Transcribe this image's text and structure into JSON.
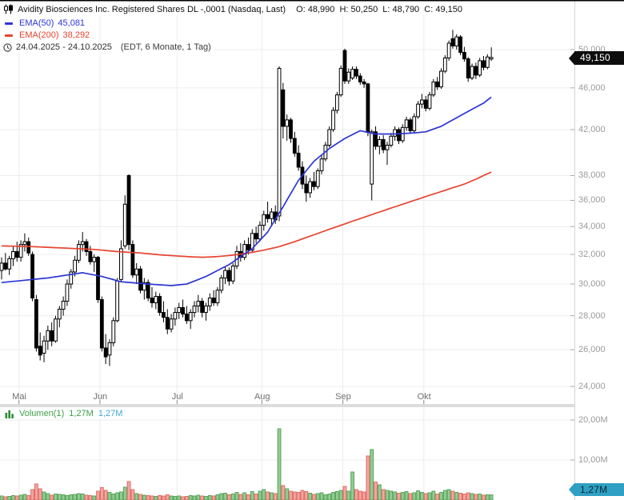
{
  "header": {
    "title": "Avidity Biosciences Inc. Registered Shares DL -,0001 (Nasdaq, Last)",
    "ohlc": "O: 48,990  H: 50,250  L: 48,790  C: 49,150"
  },
  "indicators": [
    {
      "label": "EMA(50)",
      "value": "45,081",
      "color": "#2c35d4"
    },
    {
      "label": "EMA(200)",
      "value": "38,292",
      "color": "#e8432f"
    }
  ],
  "timeline": {
    "range": "24.04.2025 - 24.10.2025",
    "settings": "(EDT, 6 Monate, 1 Tag)"
  },
  "volume_legend": {
    "label": "Volumen(1)",
    "value": "1,27M",
    "last": "1,27M",
    "label_color": "#41a046",
    "last_color": "#45a8cc"
  },
  "badges": {
    "last_price": "49,150",
    "last_volume": "1,27M"
  },
  "price_axis": {
    "ticks": [
      {
        "label": "50,000",
        "value": 50
      },
      {
        "label": "46,000",
        "value": 46
      },
      {
        "label": "42,000",
        "value": 42
      },
      {
        "label": "38,000",
        "value": 38
      },
      {
        "label": "36,000",
        "value": 36
      },
      {
        "label": "34,000",
        "value": 34
      },
      {
        "label": "32,000",
        "value": 32
      },
      {
        "label": "30,000",
        "value": 30
      },
      {
        "label": "28,000",
        "value": 28
      },
      {
        "label": "26,000",
        "value": 26
      },
      {
        "label": "24,000",
        "value": 24
      }
    ]
  },
  "volume_axis": {
    "ticks": [
      {
        "label": "20,00M",
        "value": 20
      },
      {
        "label": "10,00M",
        "value": 10
      }
    ]
  },
  "x_axis": {
    "months": [
      {
        "label": "Mai",
        "index": 5
      },
      {
        "label": "Jun",
        "index": 26
      },
      {
        "label": "Jul",
        "index": 46
      },
      {
        "label": "Aug",
        "index": 68
      },
      {
        "label": "Sep",
        "index": 89
      },
      {
        "label": "Okt",
        "index": 110
      }
    ]
  },
  "colors": {
    "ema50": "#2c35d4",
    "ema200": "#e8432f",
    "candle_up_fill": "#ffffff",
    "candle_down_fill": "#000000",
    "candle_stroke": "#000000",
    "vol_up_fill": "#97cb97",
    "vol_up_stroke": "#55a455",
    "vol_down_fill": "#f3a6a2",
    "vol_down_stroke": "#df6b62",
    "grid": "#ececec",
    "divider": "#dcdcdc",
    "axis_line": "#d4d4d4",
    "price_badge_bg": "#0d0d0d",
    "volume_badge_bg": "#2fa0c4"
  },
  "chart_data": {
    "type": "candlestick",
    "scale": "logarithmic",
    "interval": "1 Tag",
    "date_range": "24.04.2025 - 24.10.2025",
    "price_unit": "displayed in thousandths, e.g. 49.15 rendered as 49,150",
    "volume_unit": "millions of shares",
    "last_ohlc": {
      "o": 48.99,
      "h": 50.25,
      "l": 48.79,
      "c": 49.15
    },
    "ema50_last": 45.081,
    "ema200_last": 38.292,
    "y_ticks": [
      50,
      46,
      42,
      38,
      36,
      34,
      32,
      30,
      28,
      26,
      24
    ],
    "volume_ticks": [
      20,
      10
    ],
    "candles": [
      [
        30.9,
        31.8,
        30.3,
        31.4,
        1.0
      ],
      [
        31.4,
        32.1,
        30.9,
        31.0,
        0.8
      ],
      [
        31.0,
        31.9,
        30.6,
        31.7,
        0.9
      ],
      [
        31.7,
        32.6,
        31.2,
        32.2,
        1.1
      ],
      [
        32.2,
        32.9,
        31.5,
        31.8,
        1.0
      ],
      [
        31.8,
        33.0,
        31.5,
        32.7,
        1.2
      ],
      [
        32.7,
        33.5,
        32.2,
        32.9,
        1.4
      ],
      [
        32.9,
        33.2,
        31.9,
        32.1,
        1.1
      ],
      [
        32.0,
        32.2,
        28.9,
        29.1,
        2.6
      ],
      [
        29.0,
        29.3,
        25.9,
        26.1,
        4.0
      ],
      [
        26.2,
        27.0,
        25.4,
        25.7,
        2.8
      ],
      [
        25.8,
        26.8,
        25.3,
        26.5,
        2.0
      ],
      [
        26.5,
        27.4,
        26.0,
        27.1,
        1.6
      ],
      [
        27.1,
        27.6,
        26.2,
        26.5,
        1.2
      ],
      [
        26.5,
        28.0,
        26.4,
        27.8,
        1.5
      ],
      [
        27.8,
        28.6,
        27.3,
        28.4,
        1.4
      ],
      [
        28.4,
        29.2,
        28.0,
        28.9,
        1.3
      ],
      [
        28.9,
        30.3,
        28.6,
        30.0,
        1.1
      ],
      [
        30.0,
        31.0,
        29.7,
        30.8,
        1.3
      ],
      [
        30.8,
        31.9,
        30.5,
        31.6,
        1.4
      ],
      [
        31.6,
        33.0,
        31.4,
        32.7,
        1.6
      ],
      [
        32.7,
        33.6,
        32.2,
        32.9,
        1.5
      ],
      [
        32.9,
        33.1,
        31.9,
        32.2,
        1.2
      ],
      [
        32.2,
        32.6,
        31.3,
        31.5,
        1.1
      ],
      [
        31.5,
        32.0,
        30.8,
        31.8,
        1.0
      ],
      [
        31.8,
        31.9,
        28.8,
        29.0,
        2.2
      ],
      [
        29.0,
        29.2,
        25.9,
        26.1,
        3.1
      ],
      [
        26.1,
        26.9,
        25.2,
        25.6,
        2.4
      ],
      [
        25.7,
        26.6,
        25.1,
        26.4,
        1.9
      ],
      [
        26.4,
        27.9,
        26.2,
        27.7,
        1.5
      ],
      [
        27.7,
        30.4,
        27.6,
        30.2,
        1.8
      ],
      [
        30.3,
        33.0,
        30.1,
        32.4,
        2.0
      ],
      [
        32.6,
        36.4,
        32.4,
        35.7,
        3.2
      ],
      [
        38.0,
        38.1,
        32.3,
        32.7,
        4.6
      ],
      [
        32.7,
        33.0,
        30.4,
        30.6,
        2.6
      ],
      [
        30.6,
        31.4,
        30.0,
        31.0,
        1.6
      ],
      [
        31.0,
        31.2,
        29.4,
        29.6,
        1.4
      ],
      [
        29.6,
        30.4,
        29.0,
        30.1,
        1.2
      ],
      [
        30.1,
        30.3,
        28.9,
        29.1,
        1.1
      ],
      [
        29.1,
        29.8,
        28.5,
        28.8,
        1.0
      ],
      [
        28.8,
        29.5,
        28.4,
        29.2,
        0.9
      ],
      [
        29.2,
        29.4,
        28.0,
        28.2,
        1.1
      ],
      [
        28.2,
        28.9,
        27.6,
        27.9,
        1.0
      ],
      [
        27.9,
        28.4,
        26.9,
        27.2,
        1.3
      ],
      [
        27.2,
        28.1,
        27.0,
        27.8,
        1.0
      ],
      [
        27.8,
        28.5,
        27.4,
        28.2,
        0.9
      ],
      [
        28.2,
        28.8,
        27.8,
        28.5,
        1.0
      ],
      [
        28.5,
        29.0,
        27.9,
        28.1,
        0.8
      ],
      [
        28.1,
        28.6,
        27.5,
        27.7,
        0.9
      ],
      [
        27.7,
        28.4,
        27.2,
        28.2,
        1.1
      ],
      [
        28.2,
        28.9,
        27.9,
        28.6,
        1.0
      ],
      [
        28.6,
        29.3,
        28.2,
        28.9,
        1.2
      ],
      [
        28.9,
        29.1,
        27.9,
        28.2,
        1.0
      ],
      [
        28.2,
        28.8,
        27.7,
        28.6,
        0.9
      ],
      [
        28.6,
        29.4,
        28.3,
        29.1,
        1.1
      ],
      [
        29.1,
        29.6,
        28.6,
        28.8,
        1.0
      ],
      [
        28.8,
        29.8,
        28.6,
        29.6,
        1.3
      ],
      [
        29.6,
        30.6,
        29.4,
        30.4,
        1.6
      ],
      [
        30.4,
        31.2,
        30.0,
        30.9,
        1.7
      ],
      [
        30.9,
        31.1,
        29.9,
        30.2,
        1.3
      ],
      [
        30.2,
        31.4,
        30.0,
        31.2,
        1.5
      ],
      [
        31.2,
        32.6,
        31.0,
        32.2,
        1.9
      ],
      [
        32.2,
        32.8,
        31.5,
        31.8,
        1.4
      ],
      [
        31.8,
        33.0,
        31.6,
        32.7,
        1.8
      ],
      [
        32.7,
        33.2,
        32.0,
        32.3,
        1.3
      ],
      [
        32.3,
        33.8,
        32.1,
        33.5,
        2.1
      ],
      [
        33.5,
        34.0,
        32.8,
        33.1,
        1.5
      ],
      [
        33.1,
        34.4,
        32.9,
        34.1,
        2.2
      ],
      [
        34.1,
        35.2,
        33.7,
        34.9,
        2.6
      ],
      [
        34.9,
        35.9,
        34.3,
        34.6,
        2.0
      ],
      [
        34.6,
        35.4,
        34.0,
        35.1,
        1.8
      ],
      [
        35.1,
        35.6,
        34.2,
        34.5,
        1.6
      ],
      [
        34.8,
        48.2,
        34.4,
        48.0,
        17.8
      ],
      [
        45.8,
        46.5,
        41.2,
        42.3,
        3.6
      ],
      [
        42.3,
        43.4,
        41.0,
        42.9,
        2.8
      ],
      [
        42.9,
        43.1,
        40.8,
        41.2,
        2.2
      ],
      [
        41.2,
        41.8,
        39.6,
        39.9,
        2.0
      ],
      [
        39.9,
        40.6,
        38.4,
        38.7,
        1.9
      ],
      [
        38.7,
        39.2,
        36.9,
        37.3,
        2.4
      ],
      [
        37.3,
        38.0,
        35.9,
        36.6,
        2.1
      ],
      [
        36.6,
        37.8,
        36.2,
        37.5,
        1.7
      ],
      [
        37.5,
        38.3,
        36.8,
        37.1,
        1.4
      ],
      [
        37.1,
        38.6,
        36.9,
        38.4,
        1.6
      ],
      [
        38.4,
        39.7,
        38.1,
        39.4,
        1.8
      ],
      [
        39.4,
        40.9,
        39.2,
        40.6,
        1.3
      ],
      [
        40.6,
        42.3,
        40.4,
        42.0,
        1.5
      ],
      [
        42.0,
        44.1,
        41.8,
        43.8,
        1.9
      ],
      [
        43.8,
        45.6,
        43.5,
        45.3,
        2.1
      ],
      [
        45.3,
        48.3,
        45.1,
        48.0,
        2.4
      ],
      [
        49.9,
        50.1,
        46.4,
        46.7,
        3.4
      ],
      [
        46.7,
        48.0,
        46.4,
        47.6,
        2.2
      ],
      [
        47.0,
        48.2,
        46.8,
        47.9,
        7.0
      ],
      [
        47.9,
        48.2,
        46.9,
        47.2,
        2.6
      ],
      [
        47.2,
        47.5,
        46.3,
        46.6,
        2.2
      ],
      [
        46.6,
        46.9,
        46.0,
        46.4,
        2.0
      ],
      [
        46.4,
        46.5,
        41.4,
        41.8,
        11.0
      ],
      [
        37.3,
        42.0,
        36.0,
        41.8,
        12.6
      ],
      [
        41.8,
        42.3,
        40.2,
        40.5,
        4.5
      ],
      [
        40.5,
        41.4,
        39.8,
        41.1,
        3.8
      ],
      [
        41.1,
        41.5,
        39.9,
        40.2,
        2.6
      ],
      [
        40.2,
        40.9,
        38.9,
        40.6,
        2.4
      ],
      [
        40.6,
        41.7,
        40.4,
        41.4,
        2.2
      ],
      [
        41.4,
        42.3,
        41.0,
        42.0,
        2.0
      ],
      [
        42.0,
        42.2,
        40.7,
        41.0,
        1.7
      ],
      [
        41.0,
        42.5,
        40.8,
        42.2,
        1.9
      ],
      [
        42.2,
        43.2,
        41.9,
        42.9,
        2.1
      ],
      [
        42.9,
        43.1,
        41.6,
        41.9,
        1.6
      ],
      [
        41.9,
        43.5,
        41.7,
        43.2,
        1.8
      ],
      [
        43.2,
        44.7,
        43.0,
        44.4,
        2.3
      ],
      [
        44.4,
        45.4,
        44.0,
        44.8,
        1.9
      ],
      [
        44.8,
        45.2,
        43.7,
        44.0,
        1.6
      ],
      [
        44.0,
        45.6,
        43.8,
        45.3,
        1.8
      ],
      [
        45.3,
        46.9,
        45.1,
        46.6,
        2.2
      ],
      [
        46.6,
        47.1,
        45.8,
        46.1,
        1.5
      ],
      [
        46.1,
        48.0,
        45.9,
        47.7,
        1.9
      ],
      [
        47.7,
        49.4,
        47.5,
        49.1,
        2.4
      ],
      [
        49.1,
        51.0,
        48.8,
        50.7,
        2.6
      ],
      [
        51.2,
        52.2,
        50.1,
        50.4,
        2.2
      ],
      [
        50.4,
        51.7,
        50.0,
        51.4,
        1.9
      ],
      [
        51.4,
        51.6,
        49.4,
        49.7,
        1.7
      ],
      [
        49.7,
        50.3,
        48.7,
        49.0,
        1.5
      ],
      [
        49.0,
        49.2,
        46.6,
        47.0,
        1.8
      ],
      [
        47.0,
        48.5,
        46.8,
        48.2,
        1.6
      ],
      [
        48.2,
        48.6,
        46.9,
        47.3,
        1.4
      ],
      [
        47.3,
        49.1,
        47.1,
        48.8,
        1.5
      ],
      [
        48.8,
        49.3,
        47.8,
        48.1,
        1.2
      ],
      [
        48.1,
        49.5,
        47.9,
        49.2,
        1.3
      ],
      [
        48.99,
        50.25,
        48.79,
        49.15,
        1.27
      ]
    ],
    "ema50_points": [
      [
        0,
        30.1
      ],
      [
        12,
        30.4
      ],
      [
        21,
        30.75
      ],
      [
        26,
        30.5
      ],
      [
        31,
        30.15
      ],
      [
        38,
        30.0
      ],
      [
        44,
        29.9
      ],
      [
        48,
        30.0
      ],
      [
        53,
        30.5
      ],
      [
        59,
        31.3
      ],
      [
        65,
        32.4
      ],
      [
        69,
        33.6
      ],
      [
        73,
        35.5
      ],
      [
        77,
        37.6
      ],
      [
        81,
        39.2
      ],
      [
        85,
        40.3
      ],
      [
        89,
        41.2
      ],
      [
        93,
        41.9
      ],
      [
        97,
        41.6
      ],
      [
        102,
        41.6
      ],
      [
        107,
        41.7
      ],
      [
        110,
        41.8
      ],
      [
        114,
        42.3
      ],
      [
        118,
        43.1
      ],
      [
        122,
        43.9
      ],
      [
        125,
        44.5
      ],
      [
        127,
        45.081
      ]
    ],
    "ema200_points": [
      [
        0,
        32.6
      ],
      [
        8,
        32.55
      ],
      [
        16,
        32.45
      ],
      [
        24,
        32.35
      ],
      [
        30,
        32.2
      ],
      [
        36,
        32.1
      ],
      [
        42,
        31.95
      ],
      [
        48,
        31.85
      ],
      [
        52,
        31.8
      ],
      [
        56,
        31.85
      ],
      [
        60,
        31.95
      ],
      [
        64,
        32.1
      ],
      [
        68,
        32.3
      ],
      [
        72,
        32.55
      ],
      [
        76,
        32.9
      ],
      [
        80,
        33.3
      ],
      [
        84,
        33.7
      ],
      [
        88,
        34.1
      ],
      [
        92,
        34.5
      ],
      [
        96,
        34.9
      ],
      [
        100,
        35.3
      ],
      [
        104,
        35.7
      ],
      [
        108,
        36.1
      ],
      [
        112,
        36.5
      ],
      [
        116,
        36.9
      ],
      [
        120,
        37.3
      ],
      [
        123,
        37.7
      ],
      [
        125,
        38.0
      ],
      [
        127,
        38.292
      ]
    ]
  }
}
